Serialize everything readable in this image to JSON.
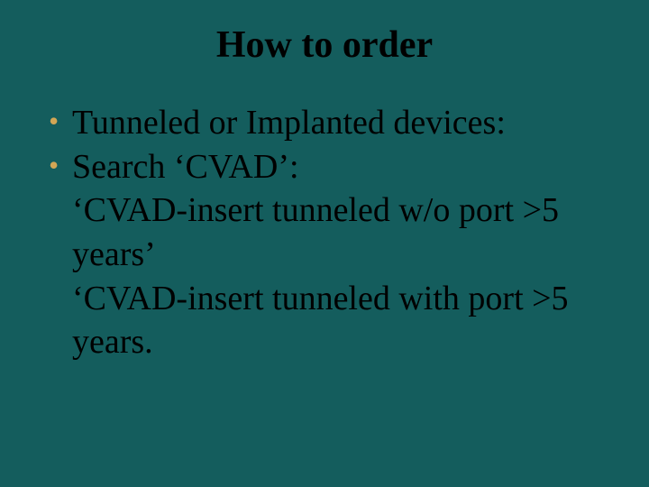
{
  "slide": {
    "background_color": "#145d5d",
    "text_color": "#000000",
    "bullet_color": "#d2a655",
    "title": "How to order",
    "title_fontsize": 42,
    "body_fontsize": 38,
    "font_family": "Garamond",
    "bullets": [
      {
        "text": "Tunneled or Implanted devices:"
      },
      {
        "text": "Search ‘CVAD’:"
      }
    ],
    "continuations": [
      "‘CVAD-insert tunneled w/o port >5 years’",
      "‘CVAD-insert tunneled with port >5 years."
    ]
  }
}
